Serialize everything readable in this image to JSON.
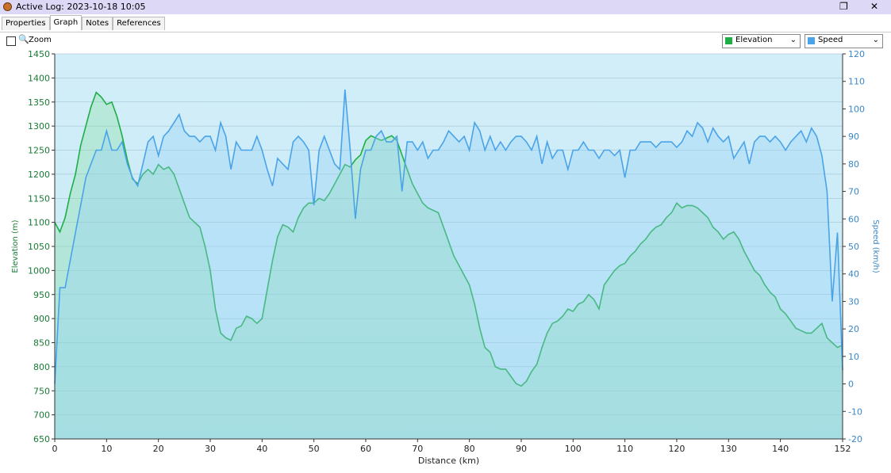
{
  "window": {
    "title": "Active Log: 2023-10-18 10:05"
  },
  "tabs": [
    "Properties",
    "Graph",
    "Notes",
    "References"
  ],
  "toolbar": {
    "zoom": "Zoom",
    "left_select": "Elevation",
    "right_select": "Speed"
  },
  "chart_data": {
    "type": "line",
    "xlabel": "Distance  (km)",
    "ylabel": "Elevation (m)",
    "y2label": "Speed (km/h)",
    "xlim": [
      0,
      152
    ],
    "xticks": [
      0,
      10,
      20,
      30,
      40,
      50,
      60,
      70,
      80,
      90,
      100,
      110,
      120,
      130,
      140,
      152
    ],
    "ylim": [
      650,
      1450
    ],
    "yticks": [
      650,
      700,
      750,
      800,
      850,
      900,
      950,
      1000,
      1050,
      1100,
      1150,
      1200,
      1250,
      1300,
      1350,
      1400,
      1450
    ],
    "y2lim": [
      -20,
      120
    ],
    "y2ticks": [
      -20,
      -10,
      0,
      10,
      20,
      30,
      40,
      50,
      60,
      70,
      80,
      90,
      100,
      110,
      120
    ],
    "grid": true,
    "x": [
      0,
      1,
      2,
      3,
      4,
      5,
      6,
      7,
      8,
      9,
      10,
      11,
      12,
      13,
      14,
      15,
      16,
      17,
      18,
      19,
      20,
      21,
      22,
      23,
      24,
      25,
      26,
      27,
      28,
      29,
      30,
      31,
      32,
      33,
      34,
      35,
      36,
      37,
      38,
      39,
      40,
      41,
      42,
      43,
      44,
      45,
      46,
      47,
      48,
      49,
      50,
      51,
      52,
      53,
      54,
      55,
      56,
      57,
      58,
      59,
      60,
      61,
      62,
      63,
      64,
      65,
      66,
      67,
      68,
      69,
      70,
      71,
      72,
      73,
      74,
      75,
      76,
      77,
      78,
      79,
      80,
      81,
      82,
      83,
      84,
      85,
      86,
      87,
      88,
      89,
      90,
      91,
      92,
      93,
      94,
      95,
      96,
      97,
      98,
      99,
      100,
      101,
      102,
      103,
      104,
      105,
      106,
      107,
      108,
      109,
      110,
      111,
      112,
      113,
      114,
      115,
      116,
      117,
      118,
      119,
      120,
      121,
      122,
      123,
      124,
      125,
      126,
      127,
      128,
      129,
      130,
      131,
      132,
      133,
      134,
      135,
      136,
      137,
      138,
      139,
      140,
      141,
      142,
      143,
      144,
      145,
      146,
      147,
      148,
      149,
      150,
      151,
      152
    ],
    "series": [
      {
        "name": "Elevation",
        "color": "#1fad45",
        "axis": "y",
        "values": [
          1100,
          1080,
          1110,
          1160,
          1200,
          1260,
          1300,
          1340,
          1370,
          1360,
          1345,
          1350,
          1320,
          1280,
          1230,
          1190,
          1180,
          1200,
          1210,
          1200,
          1220,
          1210,
          1215,
          1200,
          1170,
          1140,
          1110,
          1100,
          1090,
          1050,
          1000,
          920,
          870,
          860,
          855,
          880,
          885,
          905,
          900,
          890,
          900,
          960,
          1020,
          1070,
          1095,
          1090,
          1080,
          1110,
          1130,
          1140,
          1140,
          1150,
          1145,
          1160,
          1180,
          1200,
          1220,
          1215,
          1230,
          1240,
          1270,
          1280,
          1275,
          1270,
          1275,
          1280,
          1270,
          1240,
          1210,
          1180,
          1160,
          1140,
          1130,
          1125,
          1120,
          1090,
          1060,
          1030,
          1010,
          990,
          970,
          930,
          880,
          840,
          830,
          800,
          795,
          795,
          780,
          765,
          760,
          770,
          790,
          805,
          840,
          870,
          890,
          895,
          905,
          920,
          915,
          930,
          935,
          950,
          940,
          920,
          970,
          985,
          1000,
          1010,
          1015,
          1030,
          1040,
          1055,
          1065,
          1080,
          1090,
          1095,
          1110,
          1120,
          1140,
          1130,
          1135,
          1135,
          1130,
          1120,
          1110,
          1090,
          1080,
          1065,
          1075,
          1080,
          1065,
          1040,
          1020,
          1000,
          990,
          970,
          955,
          945,
          920,
          910,
          895,
          880,
          875,
          870,
          870,
          880,
          890,
          860,
          850,
          840,
          845
        ]
      },
      {
        "name": "Speed",
        "color": "#4aa3e8",
        "axis": "y2",
        "values": [
          0,
          35,
          35,
          45,
          55,
          65,
          75,
          80,
          85,
          85,
          92,
          85,
          85,
          88,
          80,
          75,
          72,
          80,
          88,
          90,
          83,
          90,
          92,
          95,
          98,
          92,
          90,
          90,
          88,
          90,
          90,
          85,
          95,
          90,
          78,
          88,
          85,
          85,
          85,
          90,
          85,
          78,
          72,
          82,
          80,
          78,
          88,
          90,
          88,
          85,
          65,
          85,
          90,
          85,
          80,
          78,
          107,
          85,
          60,
          78,
          85,
          85,
          90,
          92,
          88,
          88,
          90,
          70,
          88,
          88,
          85,
          88,
          82,
          85,
          85,
          88,
          92,
          90,
          88,
          90,
          85,
          95,
          92,
          85,
          90,
          85,
          88,
          85,
          88,
          90,
          90,
          88,
          85,
          90,
          80,
          88,
          82,
          85,
          85,
          78,
          85,
          85,
          88,
          85,
          85,
          82,
          85,
          85,
          83,
          85,
          75,
          85,
          85,
          88,
          88,
          88,
          86,
          88,
          88,
          88,
          86,
          88,
          92,
          90,
          95,
          93,
          88,
          93,
          90,
          88,
          90,
          82,
          85,
          88,
          80,
          88,
          90,
          90,
          88,
          90,
          88,
          85,
          88,
          90,
          92,
          88,
          93,
          90,
          83,
          70,
          30,
          55,
          5
        ]
      }
    ]
  }
}
